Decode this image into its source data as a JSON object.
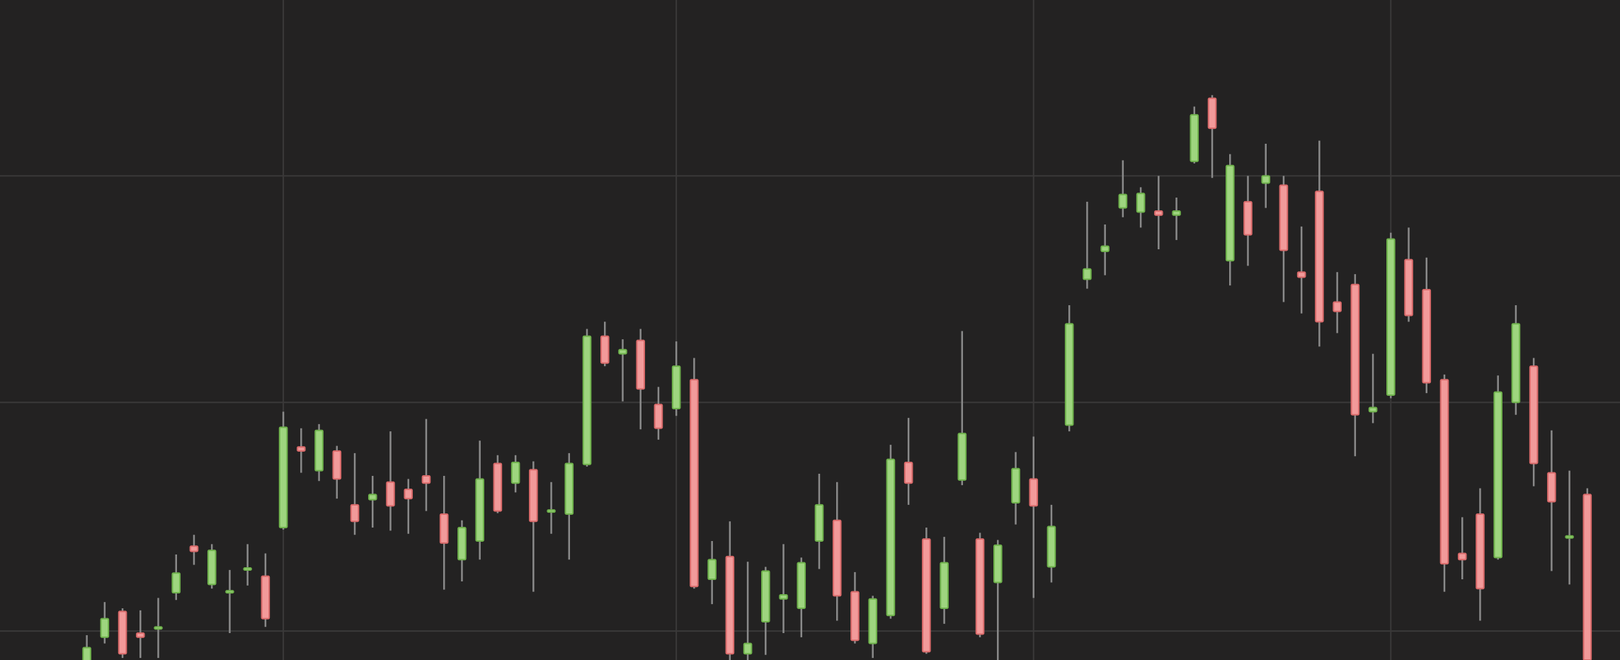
{
  "chart_data": {
    "type": "candlestick",
    "x": [
      0,
      1,
      2,
      3,
      4,
      5,
      6,
      7,
      8,
      9,
      10,
      11,
      12,
      13,
      14,
      15,
      16,
      17,
      18,
      19,
      20,
      21,
      22,
      23,
      24,
      25,
      26,
      27,
      28,
      29,
      30,
      31,
      32,
      33,
      34,
      35,
      36,
      37,
      38,
      39,
      40,
      41,
      42,
      43,
      44,
      45,
      46,
      47,
      48,
      49,
      50,
      51,
      52,
      53,
      54,
      55,
      56,
      57,
      58,
      59,
      60,
      61,
      62,
      63,
      64,
      65,
      66,
      67,
      68,
      69,
      70,
      71,
      72,
      73,
      74,
      75,
      76,
      77,
      78,
      79,
      80,
      81,
      82,
      83,
      84
    ],
    "open": [
      -2,
      22,
      47,
      26,
      30,
      65,
      110,
      73,
      65,
      87,
      81,
      128,
      206,
      183,
      202,
      150,
      155,
      172,
      165,
      178,
      141,
      97,
      115,
      190,
      171,
      184,
      143,
      141,
      189,
      313,
      296,
      309,
      247,
      243,
      271,
      78,
      100,
      6,
      37,
      59,
      50,
      115,
      135,
      66,
      16,
      43,
      191,
      117,
      50,
      174,
      117,
      75,
      152,
      175,
      90,
      227,
      368,
      395,
      437,
      433,
      434,
      430,
      482,
      543,
      386,
      443,
      461,
      459,
      375,
      453,
      346,
      363,
      240,
      256,
      387,
      358,
      271,
      103,
      141,
      99,
      249,
      284,
      181,
      118,
      160
    ],
    "high": [
      24,
      56,
      50,
      48,
      60,
      102,
      121,
      112,
      87,
      112,
      103,
      240,
      224,
      228,
      207,
      200,
      178,
      221,
      175,
      233,
      178,
      135,
      212,
      198,
      198,
      192,
      172,
      200,
      320,
      327,
      310,
      320,
      264,
      308,
      292,
      115,
      134,
      95,
      90,
      112,
      99,
      180,
      172,
      85,
      62,
      208,
      234,
      128,
      119,
      318,
      123,
      116,
      201,
      216,
      150,
      343,
      443,
      421,
      483,
      457,
      468,
      447,
      535,
      546,
      489,
      468,
      499,
      468,
      419,
      502,
      375,
      373,
      296,
      413,
      418,
      389,
      276,
      138,
      166,
      275,
      343,
      292,
      222,
      183,
      166
    ],
    "low": [
      -7,
      16,
      2,
      2,
      2,
      58,
      92,
      69,
      26,
      72,
      32,
      126,
      181,
      173,
      156,
      121,
      128,
      125,
      122,
      144,
      68,
      76,
      97,
      142,
      162,
      66,
      122,
      97,
      187,
      284,
      250,
      223,
      213,
      236,
      69,
      54,
      0,
      0,
      5,
      26,
      22,
      88,
      38,
      16,
      2,
      40,
      150,
      6,
      35,
      169,
      22,
      0,
      131,
      60,
      75,
      221,
      359,
      372,
      428,
      418,
      397,
      406,
      480,
      466,
      362,
      381,
      437,
      346,
      335,
      303,
      316,
      197,
      229,
      253,
      327,
      258,
      66,
      78,
      38,
      97,
      237,
      168,
      86,
      73,
      -2
    ],
    "close": [
      12,
      40,
      6,
      22,
      32,
      84,
      105,
      106,
      67,
      89,
      40,
      225,
      202,
      222,
      175,
      134,
      160,
      149,
      156,
      171,
      113,
      128,
      175,
      144,
      191,
      134,
      145,
      190,
      313,
      287,
      300,
      262,
      224,
      284,
      71,
      97,
      6,
      16,
      86,
      63,
      94,
      150,
      62,
      19,
      59,
      194,
      171,
      8,
      94,
      219,
      25,
      111,
      185,
      149,
      129,
      325,
      378,
      400,
      450,
      451,
      430,
      434,
      527,
      514,
      478,
      411,
      468,
      396,
      370,
      327,
      337,
      237,
      244,
      407,
      333,
      268,
      93,
      97,
      69,
      259,
      325,
      190,
      153,
      120,
      0
    ],
    "up_color": "#9ed57f",
    "down_color": "#f29a9a",
    "wick_color": "#8a8a8a",
    "xlim": [
      -4.86,
      85.83
    ],
    "ylim": [
      0,
      638
    ],
    "xticks": [
      11,
      33,
      53,
      73
    ],
    "yticks": [
      28,
      249,
      468
    ],
    "grid": true
  }
}
